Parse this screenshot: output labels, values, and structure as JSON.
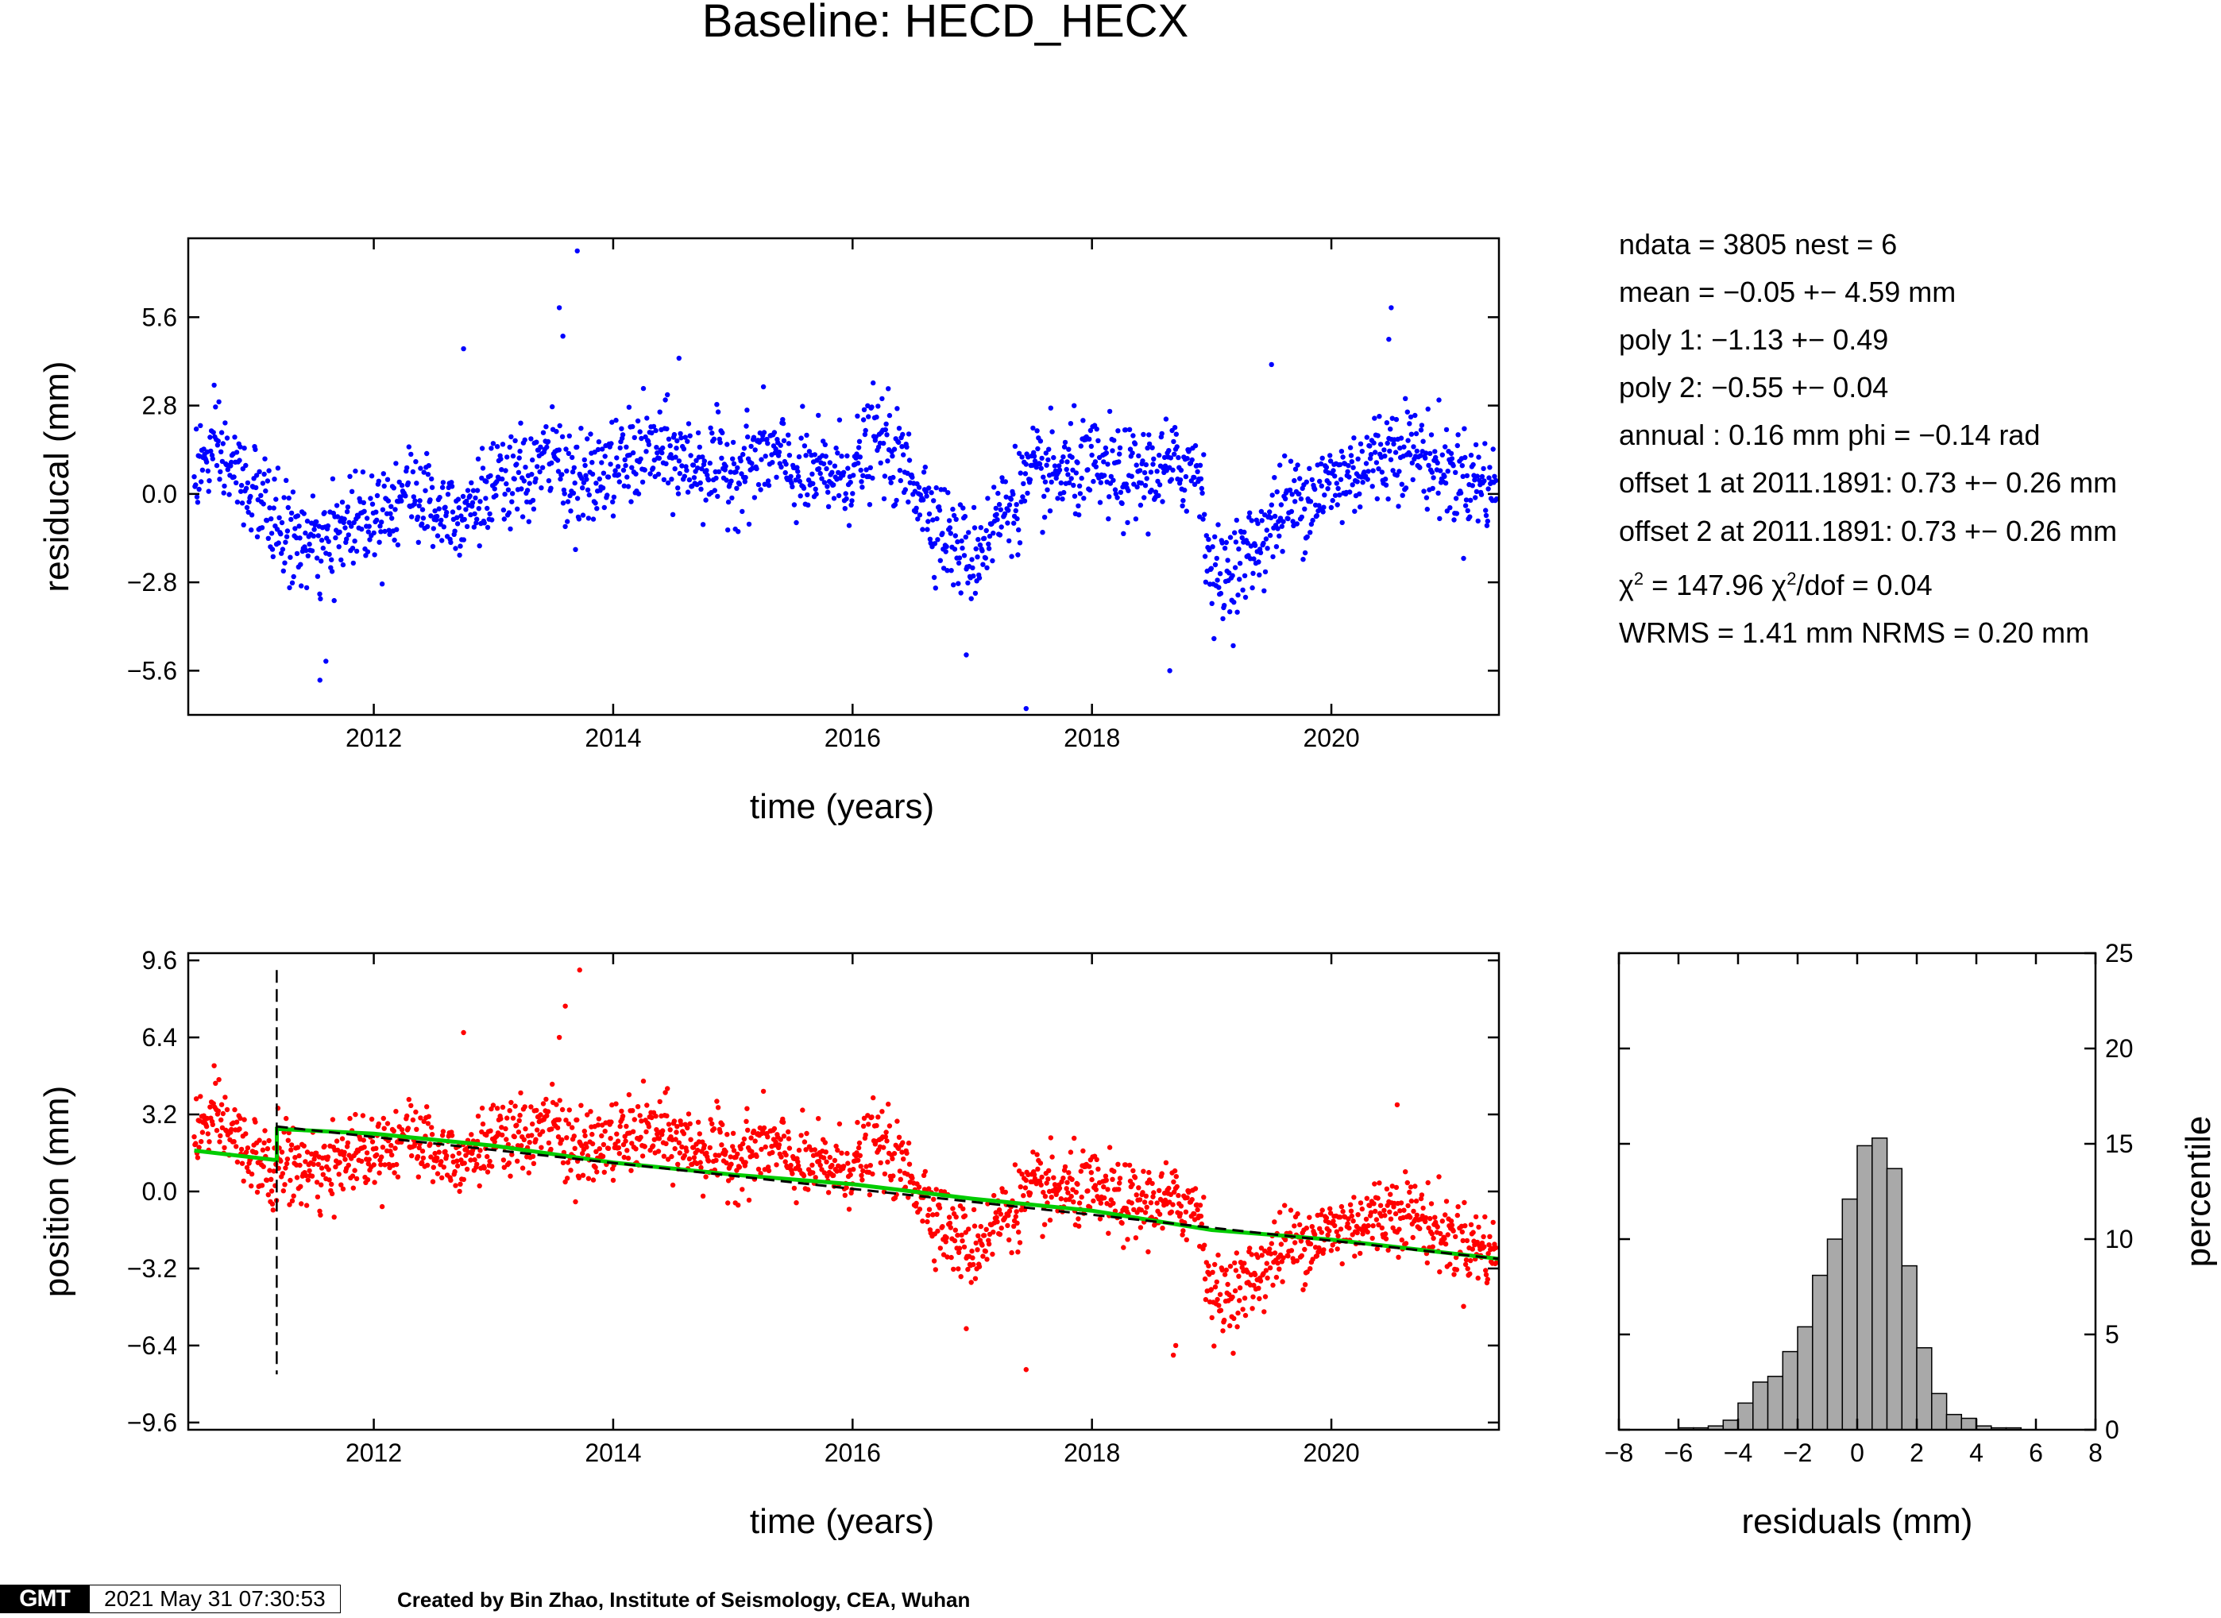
{
  "title": "Baseline: HECD_HECX",
  "stats": {
    "ndata": "ndata = 3805  nest = 6",
    "mean": "mean = −0.05 +− 4.59 mm",
    "poly1": "poly 1: −1.13 +− 0.49",
    "poly2": "poly 2: −0.55 +− 0.04",
    "annual": "annual : 0.16 mm  phi = −0.14 rad",
    "offset1": "offset 1 at 2011.1891: 0.73 +− 0.26 mm",
    "offset2": "offset 2 at 2011.1891: 0.73 +− 0.26 mm",
    "chi2_prefix": "χ",
    "chi2_mid": " = 147.96  χ",
    "chi2_suffix": "/dof = 0.04",
    "sup": "2",
    "wrms": "WRMS = 1.41 mm  NRMS = 0.20 mm"
  },
  "footer": {
    "logo": "GMT",
    "timestamp": "2021 May 31 07:30:53",
    "credit": "Created by Bin Zhao, Institute of Seismology, CEA, Wuhan"
  },
  "colors": {
    "residual": "#0000ff",
    "position": "#ff0000",
    "model": "#00cc00",
    "trend": "#000000",
    "hist": "#a9a9a9"
  },
  "chart_data": [
    {
      "type": "scatter",
      "name": "residual-panel",
      "xlabel": "time (years)",
      "ylabel": "residucal (mm)",
      "xlim": [
        2010.45,
        2021.4
      ],
      "ylim": [
        -7.0,
        8.1
      ],
      "xticks": [
        2012,
        2014,
        2016,
        2018,
        2020
      ],
      "xtick_labels": [
        "2012",
        "2014",
        "2016",
        "2018",
        "2020"
      ],
      "yticks": [
        -5.6,
        -2.8,
        0.0,
        2.8,
        5.6
      ],
      "ytick_labels": [
        "−5.6",
        "−2.8",
        "0.0",
        "2.8",
        "5.6"
      ],
      "color": "#0000ff",
      "trend_anchors": {
        "x": [
          2010.5,
          2010.7,
          2011.0,
          2011.3,
          2011.6,
          2011.8,
          2012.0,
          2012.3,
          2012.5,
          2012.7,
          2013.0,
          2013.3,
          2013.5,
          2013.7,
          2014.0,
          2014.3,
          2014.6,
          2015.0,
          2015.3,
          2015.6,
          2016.0,
          2016.2,
          2016.5,
          2016.8,
          2017.0,
          2017.2,
          2017.5,
          2017.7,
          2018.0,
          2018.3,
          2018.6,
          2018.9,
          2019.0,
          2019.3,
          2019.6,
          2020.0,
          2020.3,
          2020.6,
          2021.0,
          2021.4
        ],
        "y": [
          0.8,
          1.3,
          0.0,
          -1.4,
          -1.8,
          -0.8,
          -0.6,
          0.2,
          -0.4,
          -0.5,
          0.1,
          0.6,
          1.3,
          0.2,
          0.8,
          1.4,
          1.0,
          0.7,
          1.3,
          0.5,
          0.7,
          1.8,
          0.5,
          -1.4,
          -2.1,
          -0.8,
          0.5,
          0.6,
          0.8,
          0.5,
          0.8,
          0.9,
          -2.8,
          -2.0,
          -0.4,
          0.3,
          1.0,
          1.6,
          0.6,
          0.2
        ]
      },
      "noise_sd": 0.75,
      "n_points": 1900,
      "outliers": {
        "x": [
          2013.55,
          2013.58,
          2013.7,
          2012.75,
          2017.45,
          2020.5,
          2020.48,
          2018.65,
          2011.55,
          2011.6,
          2016.95,
          2014.55,
          2019.5
        ],
        "y": [
          5.9,
          5.0,
          7.7,
          4.6,
          -6.8,
          5.9,
          4.9,
          -5.6,
          -5.9,
          -5.3,
          -5.1,
          4.3,
          4.1
        ]
      }
    },
    {
      "type": "scatter",
      "name": "position-panel",
      "xlabel": "time (years)",
      "ylabel": "position (mm)",
      "xlim": [
        2010.45,
        2021.4
      ],
      "ylim": [
        -9.9,
        9.9
      ],
      "xticks": [
        2012,
        2014,
        2016,
        2018,
        2020
      ],
      "xtick_labels": [
        "2012",
        "2014",
        "2016",
        "2018",
        "2020"
      ],
      "yticks": [
        -9.6,
        -6.4,
        -3.2,
        0.0,
        3.2,
        6.4,
        9.6
      ],
      "ytick_labels": [
        "−9.6",
        "−6.4",
        "−3.2",
        "0.0",
        "3.2",
        "6.4",
        "9.6"
      ],
      "color": "#ff0000",
      "offset_epoch": 2011.1891,
      "offset_marker_range": [
        -7.6,
        9.2
      ],
      "model_line": {
        "x": [
          2010.5,
          2011.19,
          2011.19,
          2012.0,
          2013.0,
          2014.0,
          2015.0,
          2016.0,
          2017.0,
          2018.0,
          2019.0,
          2020.0,
          2021.4
        ],
        "y": [
          1.7,
          1.3,
          2.6,
          2.4,
          1.9,
          1.2,
          0.7,
          0.3,
          -0.3,
          -0.8,
          -1.6,
          -2.0,
          -2.8
        ]
      },
      "trend_line": {
        "x": [
          2011.19,
          2021.4
        ],
        "y": [
          2.7,
          -2.8
        ]
      },
      "outliers": {
        "x": [
          2013.72,
          2013.6,
          2013.55,
          2012.75,
          2017.45,
          2020.55,
          2018.68,
          2018.7,
          2016.95
        ],
        "y": [
          9.2,
          7.7,
          6.4,
          6.6,
          -7.4,
          3.6,
          -6.8,
          -6.4,
          -5.7
        ]
      }
    },
    {
      "type": "bar",
      "name": "histogram-panel",
      "xlabel": "residuals (mm)",
      "ylabel": "percentile",
      "xlim": [
        -8,
        8
      ],
      "ylim": [
        0,
        25
      ],
      "xticks": [
        -8,
        -6,
        -4,
        -2,
        0,
        2,
        4,
        6,
        8
      ],
      "xtick_labels": [
        "−8",
        "−6",
        "−4",
        "−2",
        "0",
        "2",
        "4",
        "6",
        "8"
      ],
      "yticks": [
        0,
        5,
        10,
        15,
        20,
        25
      ],
      "ytick_labels": [
        "0",
        "5",
        "10",
        "15",
        "20",
        "25"
      ],
      "bin_width": 0.5,
      "bin_left_edges": [
        -6.0,
        -5.5,
        -5.0,
        -4.5,
        -4.0,
        -3.5,
        -3.0,
        -2.5,
        -2.0,
        -1.5,
        -1.0,
        -0.5,
        0.0,
        0.5,
        1.0,
        1.5,
        2.0,
        2.5,
        3.0,
        3.5,
        4.0,
        4.5,
        5.0
      ],
      "values": [
        0.1,
        0.1,
        0.2,
        0.5,
        1.4,
        2.5,
        2.8,
        4.1,
        5.4,
        8.1,
        10.0,
        12.1,
        14.9,
        15.3,
        13.7,
        8.6,
        4.3,
        1.9,
        0.8,
        0.6,
        0.2,
        0.1,
        0.1
      ],
      "color": "#a9a9a9"
    }
  ]
}
